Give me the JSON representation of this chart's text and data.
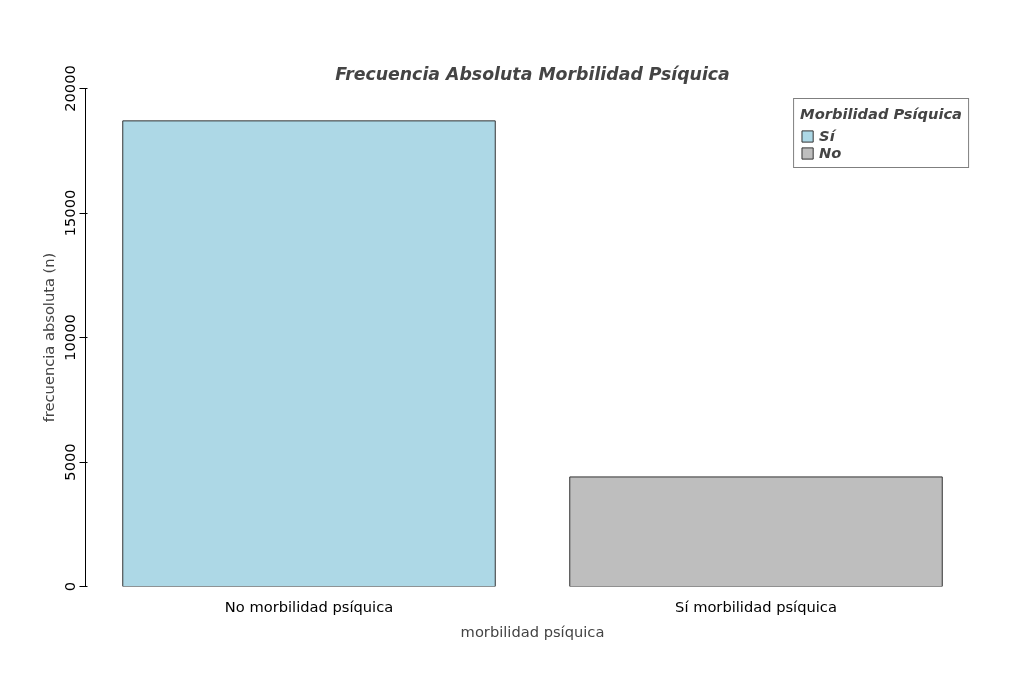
{
  "chart_data": {
    "type": "bar",
    "title": "Frecuencia Absoluta Morbilidad Psíquica",
    "xlabel": "morbilidad psíquica",
    "ylabel": "frecuencia absoluta (n)",
    "legend_title": "Morbilidad Psíquica",
    "categories": [
      "No morbilidad psíquica",
      "Sí morbilidad psíquica"
    ],
    "series": [
      {
        "name": "Sí",
        "color": "#add8e6",
        "values": [
          18700,
          null
        ]
      },
      {
        "name": "No",
        "color": "#bebebe",
        "values": [
          null,
          4400
        ]
      }
    ],
    "ylim": [
      0,
      20000
    ],
    "yticks": [
      0,
      5000,
      10000,
      15000,
      20000
    ],
    "grid": false,
    "legend": "top right"
  }
}
